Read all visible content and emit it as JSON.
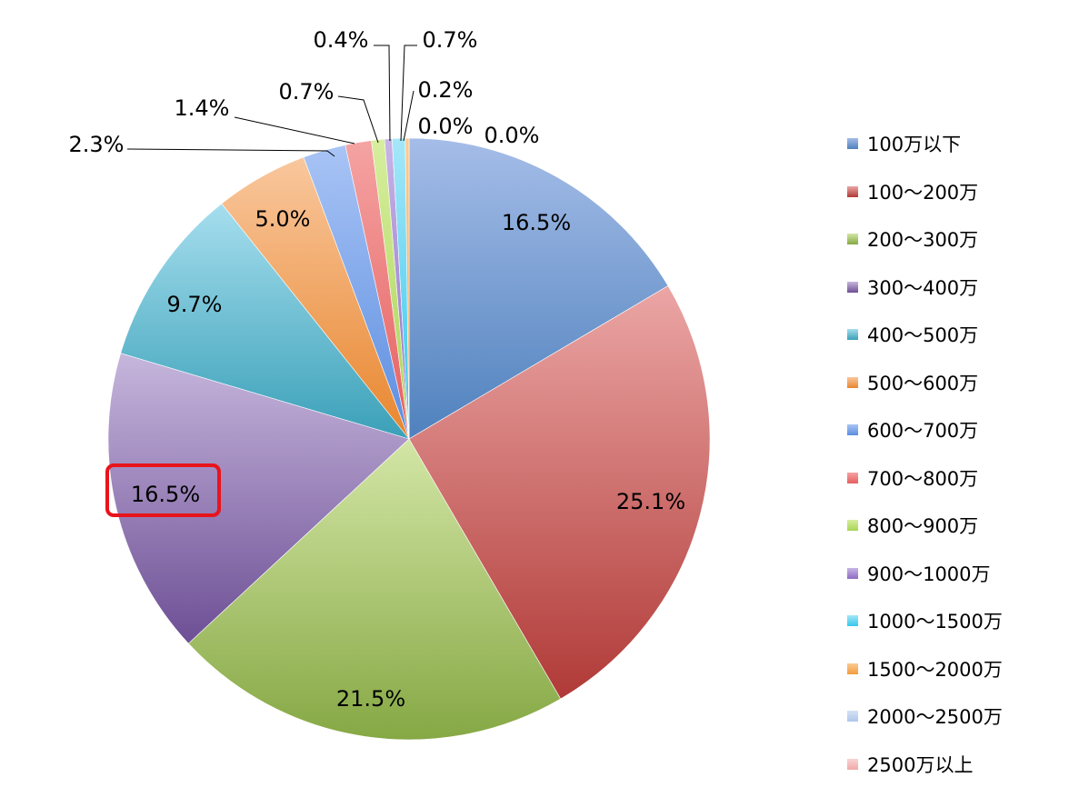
{
  "chart_data": {
    "type": "pie",
    "title": "",
    "legend_placement": "right",
    "slices": [
      {
        "label": "100万以下",
        "value": 16.5,
        "label_text": "16.5%",
        "color": "#4F81BD",
        "light": "#A5BDE8"
      },
      {
        "label": "100〜200万",
        "value": 25.1,
        "label_text": "25.1%",
        "color": "#B03A37",
        "light": "#EBA6A5"
      },
      {
        "label": "200〜300万",
        "value": 21.5,
        "label_text": "21.5%",
        "color": "#86A844",
        "light": "#D3E6A6"
      },
      {
        "label": "300〜400万",
        "value": 16.5,
        "label_text": "16.5%",
        "color": "#6D4F95",
        "light": "#C6B6DC",
        "highlighted": true
      },
      {
        "label": "400〜500万",
        "value": 9.7,
        "label_text": "9.7%",
        "color": "#3AA0B8",
        "light": "#A6DEEE"
      },
      {
        "label": "500〜600万",
        "value": 5.0,
        "label_text": "5.0%",
        "color": "#E8862E",
        "light": "#F9C79D"
      },
      {
        "label": "600〜700万",
        "value": 2.3,
        "label_text": "2.3%",
        "color": "#5B8DE0",
        "light": "#A9C4F5"
      },
      {
        "label": "700〜800万",
        "value": 1.4,
        "label_text": "1.4%",
        "color": "#E55E5E",
        "light": "#F5A3A3"
      },
      {
        "label": "800〜900万",
        "value": 0.7,
        "label_text": "0.7%",
        "color": "#A8D454",
        "light": "#D7EE9E"
      },
      {
        "label": "900〜1000万",
        "value": 0.4,
        "label_text": "0.4%",
        "color": "#8D6BC4",
        "light": "#C7B5E6"
      },
      {
        "label": "1000〜1500万",
        "value": 0.7,
        "label_text": "0.7%",
        "color": "#35C6EC",
        "light": "#A5E7F8"
      },
      {
        "label": "1500〜2000万",
        "value": 0.2,
        "label_text": "0.2%",
        "color": "#F49B3E",
        "light": "#FBCB94"
      },
      {
        "label": "2000〜2500万",
        "value": 0.0,
        "label_text": "0.0%",
        "color": "#AFC5EA",
        "light": "#D6E2F5"
      },
      {
        "label": "2500万以上",
        "value": 0.0,
        "label_text": "0.0%",
        "color": "#F0A8A8",
        "light": "#F8D3D3"
      }
    ],
    "highlight_color": "#E8141B"
  }
}
